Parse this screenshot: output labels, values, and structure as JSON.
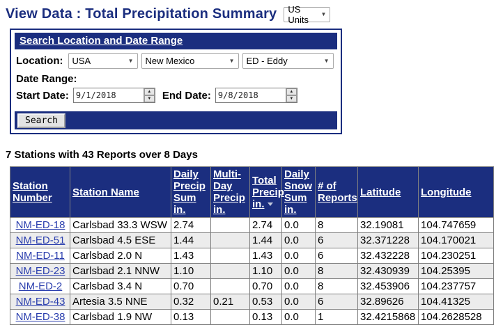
{
  "page": {
    "title": "View Data : Total Precipitation Summary",
    "units_selected": "US Units"
  },
  "icons": {
    "dropdown_arrow": "▼",
    "spin_up": "▲",
    "spin_down": "▼"
  },
  "search_panel": {
    "header": "Search Location and Date Range",
    "location_label": "Location:",
    "country_selected": "USA",
    "state_selected": "New Mexico",
    "county_selected": "ED - Eddy",
    "date_range_label": "Date Range:",
    "start_date_label": "Start Date:",
    "start_date_value": "9/1/2018",
    "end_date_label": "End Date:",
    "end_date_value": "9/8/2018",
    "search_button_label": "Search"
  },
  "summary": "7 Stations with 43 Reports over 8 Days",
  "table": {
    "columns": [
      "Station Number",
      "Station Name",
      "Daily Precip Sum in.",
      "Multi-Day Precip in.",
      "Total Precip in.",
      "Daily Snow Sum in.",
      "# of Reports",
      "Latitude",
      "Longitude"
    ],
    "sort_column_index": 4,
    "sort_direction": "desc",
    "rows": [
      [
        "NM-ED-18",
        "Carlsbad 33.3 WSW",
        "2.74",
        "",
        "2.74",
        "0.0",
        "8",
        "32.19081",
        "104.747659"
      ],
      [
        "NM-ED-51",
        "Carlsbad 4.5 ESE",
        "1.44",
        "",
        "1.44",
        "0.0",
        "6",
        "32.371228",
        "104.170021"
      ],
      [
        "NM-ED-11",
        "Carlsbad 2.0 N",
        "1.43",
        "",
        "1.43",
        "0.0",
        "6",
        "32.432228",
        "104.230251"
      ],
      [
        "NM-ED-23",
        "Carlsbad 2.1 NNW",
        "1.10",
        "",
        "1.10",
        "0.0",
        "8",
        "32.430939",
        "104.25395"
      ],
      [
        "NM-ED-2",
        "Carlsbad 3.4 N",
        "0.70",
        "",
        "0.70",
        "0.0",
        "8",
        "32.453906",
        "104.237757"
      ],
      [
        "NM-ED-43",
        "Artesia 3.5 NNE",
        "0.32",
        "0.21",
        "0.53",
        "0.0",
        "6",
        "32.89626",
        "104.41325"
      ],
      [
        "NM-ED-38",
        "Carlsbad 1.9 NW",
        "0.13",
        "",
        "0.13",
        "0.0",
        "1",
        "32.4215868",
        "104.2628528"
      ]
    ]
  },
  "colors": {
    "navy": "#1b2e7f",
    "link_blue": "#2a3eae",
    "alt_row": "#ececec",
    "grid_gray": "#808080"
  }
}
